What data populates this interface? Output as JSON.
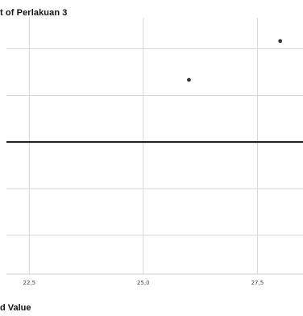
{
  "chart_data": {
    "type": "scatter",
    "title": "t of Perlakuan 3",
    "xlabel": "d Value",
    "ylabel": "",
    "x_ticks": [
      "22,5",
      "25,0",
      "27,5"
    ],
    "x_tick_values": [
      22.5,
      25.0,
      27.5
    ],
    "xlim": [
      22.0,
      28.5
    ],
    "ylim": [
      -1.7,
      1.6
    ],
    "y_grid_values": [
      1.2,
      0.6,
      0.0,
      -0.6,
      -1.2
    ],
    "reference_line_y": 0.0,
    "points": [
      {
        "x": 26.0,
        "y": 0.8
      },
      {
        "x": 28.0,
        "y": 1.3
      }
    ],
    "grid": true,
    "colors": {
      "grid": "#d6d6d6",
      "reference_line": "#111111",
      "points": "#333333",
      "axis": "#cfcfcf"
    }
  }
}
